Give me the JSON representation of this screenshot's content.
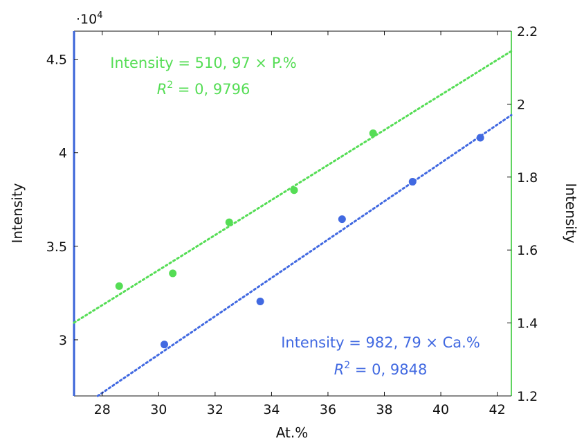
{
  "chart_data": {
    "type": "scatter",
    "xlabel": "At.%",
    "ylabel_left": "Intensity",
    "ylabel_right": "Intensity",
    "left_multiplier": "·10",
    "left_multiplier_exp": "4",
    "xlim": [
      27,
      42.5
    ],
    "ylim_left": [
      27000,
      46500
    ],
    "ylim_right": [
      1.2,
      2.2
    ],
    "x_ticks": [
      "28",
      "30",
      "32",
      "34",
      "36",
      "38",
      "40",
      "42"
    ],
    "x_tick_values": [
      28,
      30,
      32,
      34,
      36,
      38,
      40,
      42
    ],
    "left_ticks": [
      "3",
      "3.5",
      "4",
      "4.5"
    ],
    "left_tick_values": [
      30000,
      35000,
      40000,
      45000
    ],
    "right_ticks": [
      "1.2",
      "1.4",
      "1.6",
      "1.8",
      "2",
      "2.2"
    ],
    "right_tick_values": [
      1.2,
      1.4,
      1.6,
      1.8,
      2.0,
      2.2
    ],
    "colors": {
      "green": "#55dd55",
      "blue": "#4169e1",
      "left_axis": "#3a63d8",
      "right_axis": "#5fd35f"
    },
    "series": [
      {
        "color": "green",
        "axis": "right",
        "x": [
          28.6,
          30.5,
          32.5,
          34.8,
          37.6
        ],
        "y": [
          1.501,
          1.536,
          1.676,
          1.764,
          1.92
        ],
        "fit_slope": 510.97,
        "annotation_line1": "Intensity = 510, 97 × P.%",
        "annotation_r2_label": "R",
        "annotation_r2_exp": "2",
        "annotation_r2_value": " = 0, 9796"
      },
      {
        "color": "blue",
        "axis": "left",
        "x": [
          30.2,
          33.6,
          36.5,
          39.0,
          41.4
        ],
        "y": [
          29750,
          32050,
          36450,
          38450,
          40800
        ],
        "fit_slope": 982.79,
        "annotation_line1": "Intensity = 982, 79 × Ca.%",
        "annotation_r2_label": "R",
        "annotation_r2_exp": "2",
        "annotation_r2_value": " = 0, 9848"
      }
    ],
    "grid": false
  }
}
